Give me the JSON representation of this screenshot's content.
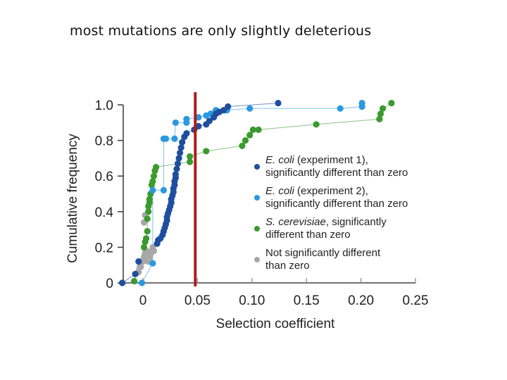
{
  "slide": {
    "title": "most mutations are only slightly deleterious"
  },
  "chart_data": {
    "type": "scatter",
    "title": "",
    "xlabel": "Selection coefficient",
    "ylabel": "Cumulative frequency",
    "xlim": [
      -0.02,
      0.25
    ],
    "ylim": [
      0,
      1.0
    ],
    "x_ticks": [
      0,
      0.05,
      0.1,
      0.15,
      0.2,
      0.25
    ],
    "x_tick_labels": [
      "0",
      "0.05",
      "0.10",
      "0.15",
      "0.20",
      "0.25"
    ],
    "y_ticks": [
      0,
      0.2,
      0.4,
      0.6,
      0.8,
      1.0
    ],
    "y_tick_labels": [
      "0",
      "0.2",
      "0.4",
      "0.6",
      "0.8",
      "1.0"
    ],
    "grid": false,
    "legend_position": "right-middle",
    "annotations": [
      {
        "type": "vline",
        "x": 0.048,
        "color": "#b01c1c",
        "label": "threshold near 0.05"
      }
    ],
    "series": [
      {
        "name": "E. coli (experiment 1), significantly different than zero",
        "name_italic": "E. coli",
        "name_rest": " (experiment 1),",
        "name_line2": "significantly different than zero",
        "color": "#1f4e9e",
        "x": [
          -0.019,
          -0.007,
          -0.004,
          0.013,
          0.014,
          0.016,
          0.018,
          0.019,
          0.02,
          0.021,
          0.022,
          0.022,
          0.023,
          0.024,
          0.025,
          0.026,
          0.026,
          0.027,
          0.028,
          0.028,
          0.029,
          0.029,
          0.03,
          0.03,
          0.031,
          0.032,
          0.033,
          0.034,
          0.035,
          0.036,
          0.038,
          0.04,
          0.047,
          0.051,
          0.058,
          0.061,
          0.065,
          0.067,
          0.07,
          0.074,
          0.078,
          0.124
        ],
        "y": [
          0.0,
          0.05,
          0.12,
          0.22,
          0.24,
          0.25,
          0.27,
          0.29,
          0.31,
          0.33,
          0.35,
          0.37,
          0.39,
          0.41,
          0.43,
          0.45,
          0.47,
          0.49,
          0.51,
          0.53,
          0.55,
          0.57,
          0.59,
          0.61,
          0.64,
          0.67,
          0.7,
          0.73,
          0.76,
          0.79,
          0.82,
          0.84,
          0.86,
          0.88,
          0.89,
          0.91,
          0.93,
          0.95,
          0.96,
          0.97,
          0.99,
          1.01
        ]
      },
      {
        "name": "E. coli (experiment 2), significantly different than zero",
        "name_italic": "E. coli",
        "name_rest": " (experiment 2),",
        "name_line2": "significantly different than zero",
        "color": "#2b98e0",
        "x": [
          -0.001,
          0.009,
          0.009,
          0.019,
          0.019,
          0.021,
          0.029,
          0.03,
          0.04,
          0.04,
          0.051,
          0.058,
          0.062,
          0.064,
          0.067,
          0.077,
          0.098,
          0.181,
          0.201,
          0.201
        ],
        "y": [
          0.0,
          0.11,
          0.52,
          0.52,
          0.81,
          0.81,
          0.81,
          0.9,
          0.9,
          0.92,
          0.93,
          0.94,
          0.95,
          0.95,
          0.97,
          0.97,
          0.98,
          0.98,
          0.99,
          1.01
        ]
      },
      {
        "name": "S. cerevisiae, significantly different than zero",
        "name_italic": "S. cerevisiae",
        "name_rest": ", significantly",
        "name_line2": "different than zero",
        "color": "#3a9a2e",
        "x": [
          -0.008,
          0.001,
          0.002,
          0.003,
          0.004,
          0.004,
          0.005,
          0.005,
          0.006,
          0.006,
          0.007,
          0.008,
          0.009,
          0.01,
          0.011,
          0.012,
          0.043,
          0.043,
          0.058,
          0.091,
          0.094,
          0.098,
          0.101,
          0.106,
          0.159,
          0.217,
          0.218,
          0.22,
          0.228
        ],
        "y": [
          0.01,
          0.2,
          0.23,
          0.25,
          0.29,
          0.36,
          0.4,
          0.43,
          0.45,
          0.47,
          0.5,
          0.55,
          0.57,
          0.6,
          0.63,
          0.65,
          0.68,
          0.71,
          0.74,
          0.77,
          0.8,
          0.83,
          0.86,
          0.86,
          0.89,
          0.92,
          0.95,
          0.98,
          1.01
        ]
      },
      {
        "name": "Not significantly different than zero",
        "name_italic": "",
        "name_rest": "Not significantly different",
        "name_line2": "than zero",
        "color": "#a8a8a8",
        "x": [
          -0.004,
          -0.002,
          0.0,
          0.001,
          0.002,
          0.003,
          0.004,
          0.005,
          0.006,
          0.007,
          0.008,
          0.009,
          0.01,
          0.001,
          0.002
        ],
        "y": [
          0.06,
          0.09,
          0.12,
          0.14,
          0.16,
          0.18,
          0.13,
          0.12,
          0.14,
          0.16,
          0.18,
          0.2,
          0.18,
          0.34,
          0.38
        ]
      }
    ]
  }
}
